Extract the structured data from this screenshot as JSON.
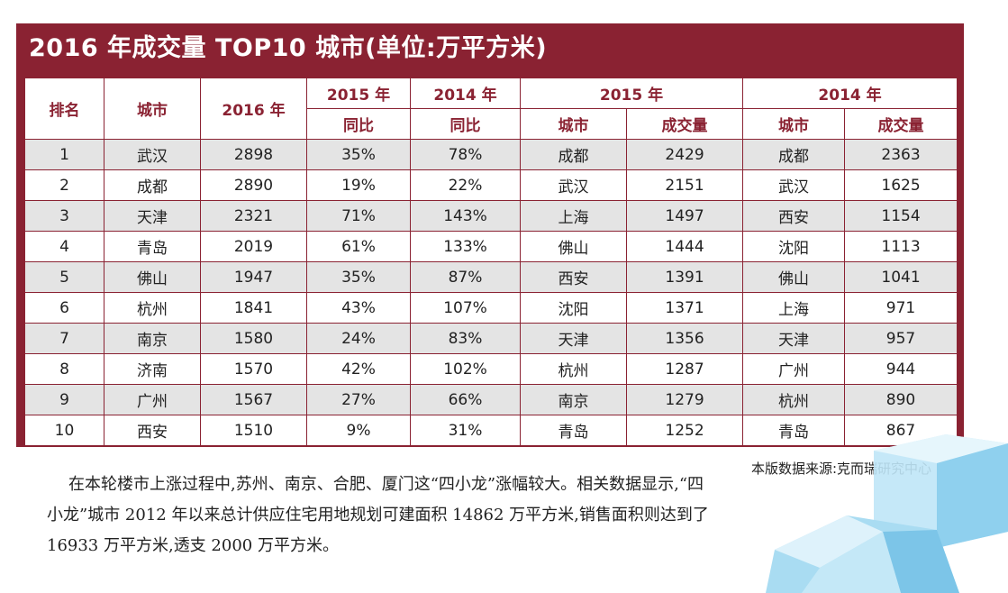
{
  "title": "2016 年成交量 TOP10 城市(单位:万平方米)",
  "header": {
    "rank": "排名",
    "city": "城市",
    "y2016": "2016 年",
    "y2015": "2015 年",
    "y2014": "2014 年",
    "yoy": "同比",
    "group2015": "2015 年",
    "group2014": "2014 年",
    "sub_city": "城市",
    "sub_volume": "成交量"
  },
  "rows": [
    {
      "rank": "1",
      "city": "武汉",
      "v2016": "2898",
      "yoy15": "35%",
      "yoy14": "78%",
      "c15": "成都",
      "v15": "2429",
      "c14": "成都",
      "v14": "2363"
    },
    {
      "rank": "2",
      "city": "成都",
      "v2016": "2890",
      "yoy15": "19%",
      "yoy14": "22%",
      "c15": "武汉",
      "v15": "2151",
      "c14": "武汉",
      "v14": "1625"
    },
    {
      "rank": "3",
      "city": "天津",
      "v2016": "2321",
      "yoy15": "71%",
      "yoy14": "143%",
      "c15": "上海",
      "v15": "1497",
      "c14": "西安",
      "v14": "1154"
    },
    {
      "rank": "4",
      "city": "青岛",
      "v2016": "2019",
      "yoy15": "61%",
      "yoy14": "133%",
      "c15": "佛山",
      "v15": "1444",
      "c14": "沈阳",
      "v14": "1113"
    },
    {
      "rank": "5",
      "city": "佛山",
      "v2016": "1947",
      "yoy15": "35%",
      "yoy14": "87%",
      "c15": "西安",
      "v15": "1391",
      "c14": "佛山",
      "v14": "1041"
    },
    {
      "rank": "6",
      "city": "杭州",
      "v2016": "1841",
      "yoy15": "43%",
      "yoy14": "107%",
      "c15": "沈阳",
      "v15": "1371",
      "c14": "上海",
      "v14": "971"
    },
    {
      "rank": "7",
      "city": "南京",
      "v2016": "1580",
      "yoy15": "24%",
      "yoy14": "83%",
      "c15": "天津",
      "v15": "1356",
      "c14": "天津",
      "v14": "957"
    },
    {
      "rank": "8",
      "city": "济南",
      "v2016": "1570",
      "yoy15": "42%",
      "yoy14": "102%",
      "c15": "杭州",
      "v15": "1287",
      "c14": "广州",
      "v14": "944"
    },
    {
      "rank": "9",
      "city": "广州",
      "v2016": "1567",
      "yoy15": "27%",
      "yoy14": "66%",
      "c15": "南京",
      "v15": "1279",
      "c14": "杭州",
      "v14": "890"
    },
    {
      "rank": "10",
      "city": "西安",
      "v2016": "1510",
      "yoy15": "9%",
      "yoy14": "31%",
      "c15": "青岛",
      "v15": "1252",
      "c14": "青岛",
      "v14": "867"
    }
  ],
  "source": "本版数据来源:克而瑞研究中心",
  "paragraph": "在本轮楼市上涨过程中,苏州、南京、合肥、厦门这“四小龙”涨幅较大。相关数据显示,“四小龙”城市 2012 年以来总计供应住宅用地规划可建面积 14862 万平方米,销售面积则达到了 16933 万平方米,透支 2000 万平方米。",
  "colors": {
    "accent": "#8a2232",
    "stripe": "#e4e4e4",
    "ice": "#8fd0ee"
  }
}
